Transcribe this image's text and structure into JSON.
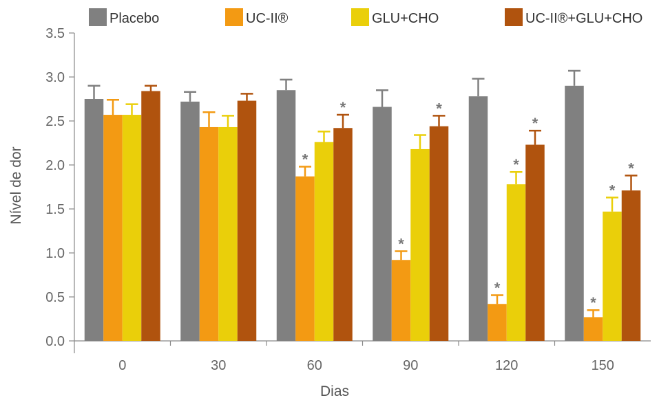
{
  "chart_data": {
    "type": "bar",
    "xlabel": "Dias",
    "ylabel": "Nível de dor",
    "categories": [
      "0",
      "30",
      "60",
      "90",
      "120",
      "150"
    ],
    "ylim": [
      0,
      3.5
    ],
    "y_ticks": [
      "0.0",
      "0.5",
      "1.0",
      "1.5",
      "2.0",
      "2.5",
      "3.0",
      "3.5"
    ],
    "legend_position": "top",
    "series": [
      {
        "name": "Placebo",
        "color": "#808080",
        "values": [
          2.75,
          2.72,
          2.85,
          2.66,
          2.78,
          2.9
        ],
        "errors": [
          0.15,
          0.11,
          0.12,
          0.19,
          0.2,
          0.17
        ],
        "significant": [
          false,
          false,
          false,
          false,
          false,
          false
        ]
      },
      {
        "name": "UC-II®",
        "color": "#F39A13",
        "values": [
          2.57,
          2.43,
          1.87,
          0.92,
          0.42,
          0.27
        ],
        "errors": [
          0.17,
          0.17,
          0.11,
          0.1,
          0.1,
          0.08
        ],
        "significant": [
          false,
          false,
          true,
          true,
          true,
          true
        ]
      },
      {
        "name": "GLU+CHO",
        "color": "#EACF0A",
        "values": [
          2.57,
          2.43,
          2.26,
          2.18,
          1.78,
          1.47
        ],
        "errors": [
          0.12,
          0.13,
          0.12,
          0.16,
          0.14,
          0.16
        ],
        "significant": [
          false,
          false,
          false,
          false,
          true,
          true
        ]
      },
      {
        "name": "UC-II®+GLU+CHO",
        "color": "#B0530E",
        "values": [
          2.84,
          2.73,
          2.42,
          2.44,
          2.23,
          1.71
        ],
        "errors": [
          0.06,
          0.08,
          0.15,
          0.12,
          0.16,
          0.17
        ],
        "significant": [
          false,
          false,
          true,
          true,
          true,
          true
        ]
      }
    ],
    "significance_marker": "*",
    "grid": false
  }
}
